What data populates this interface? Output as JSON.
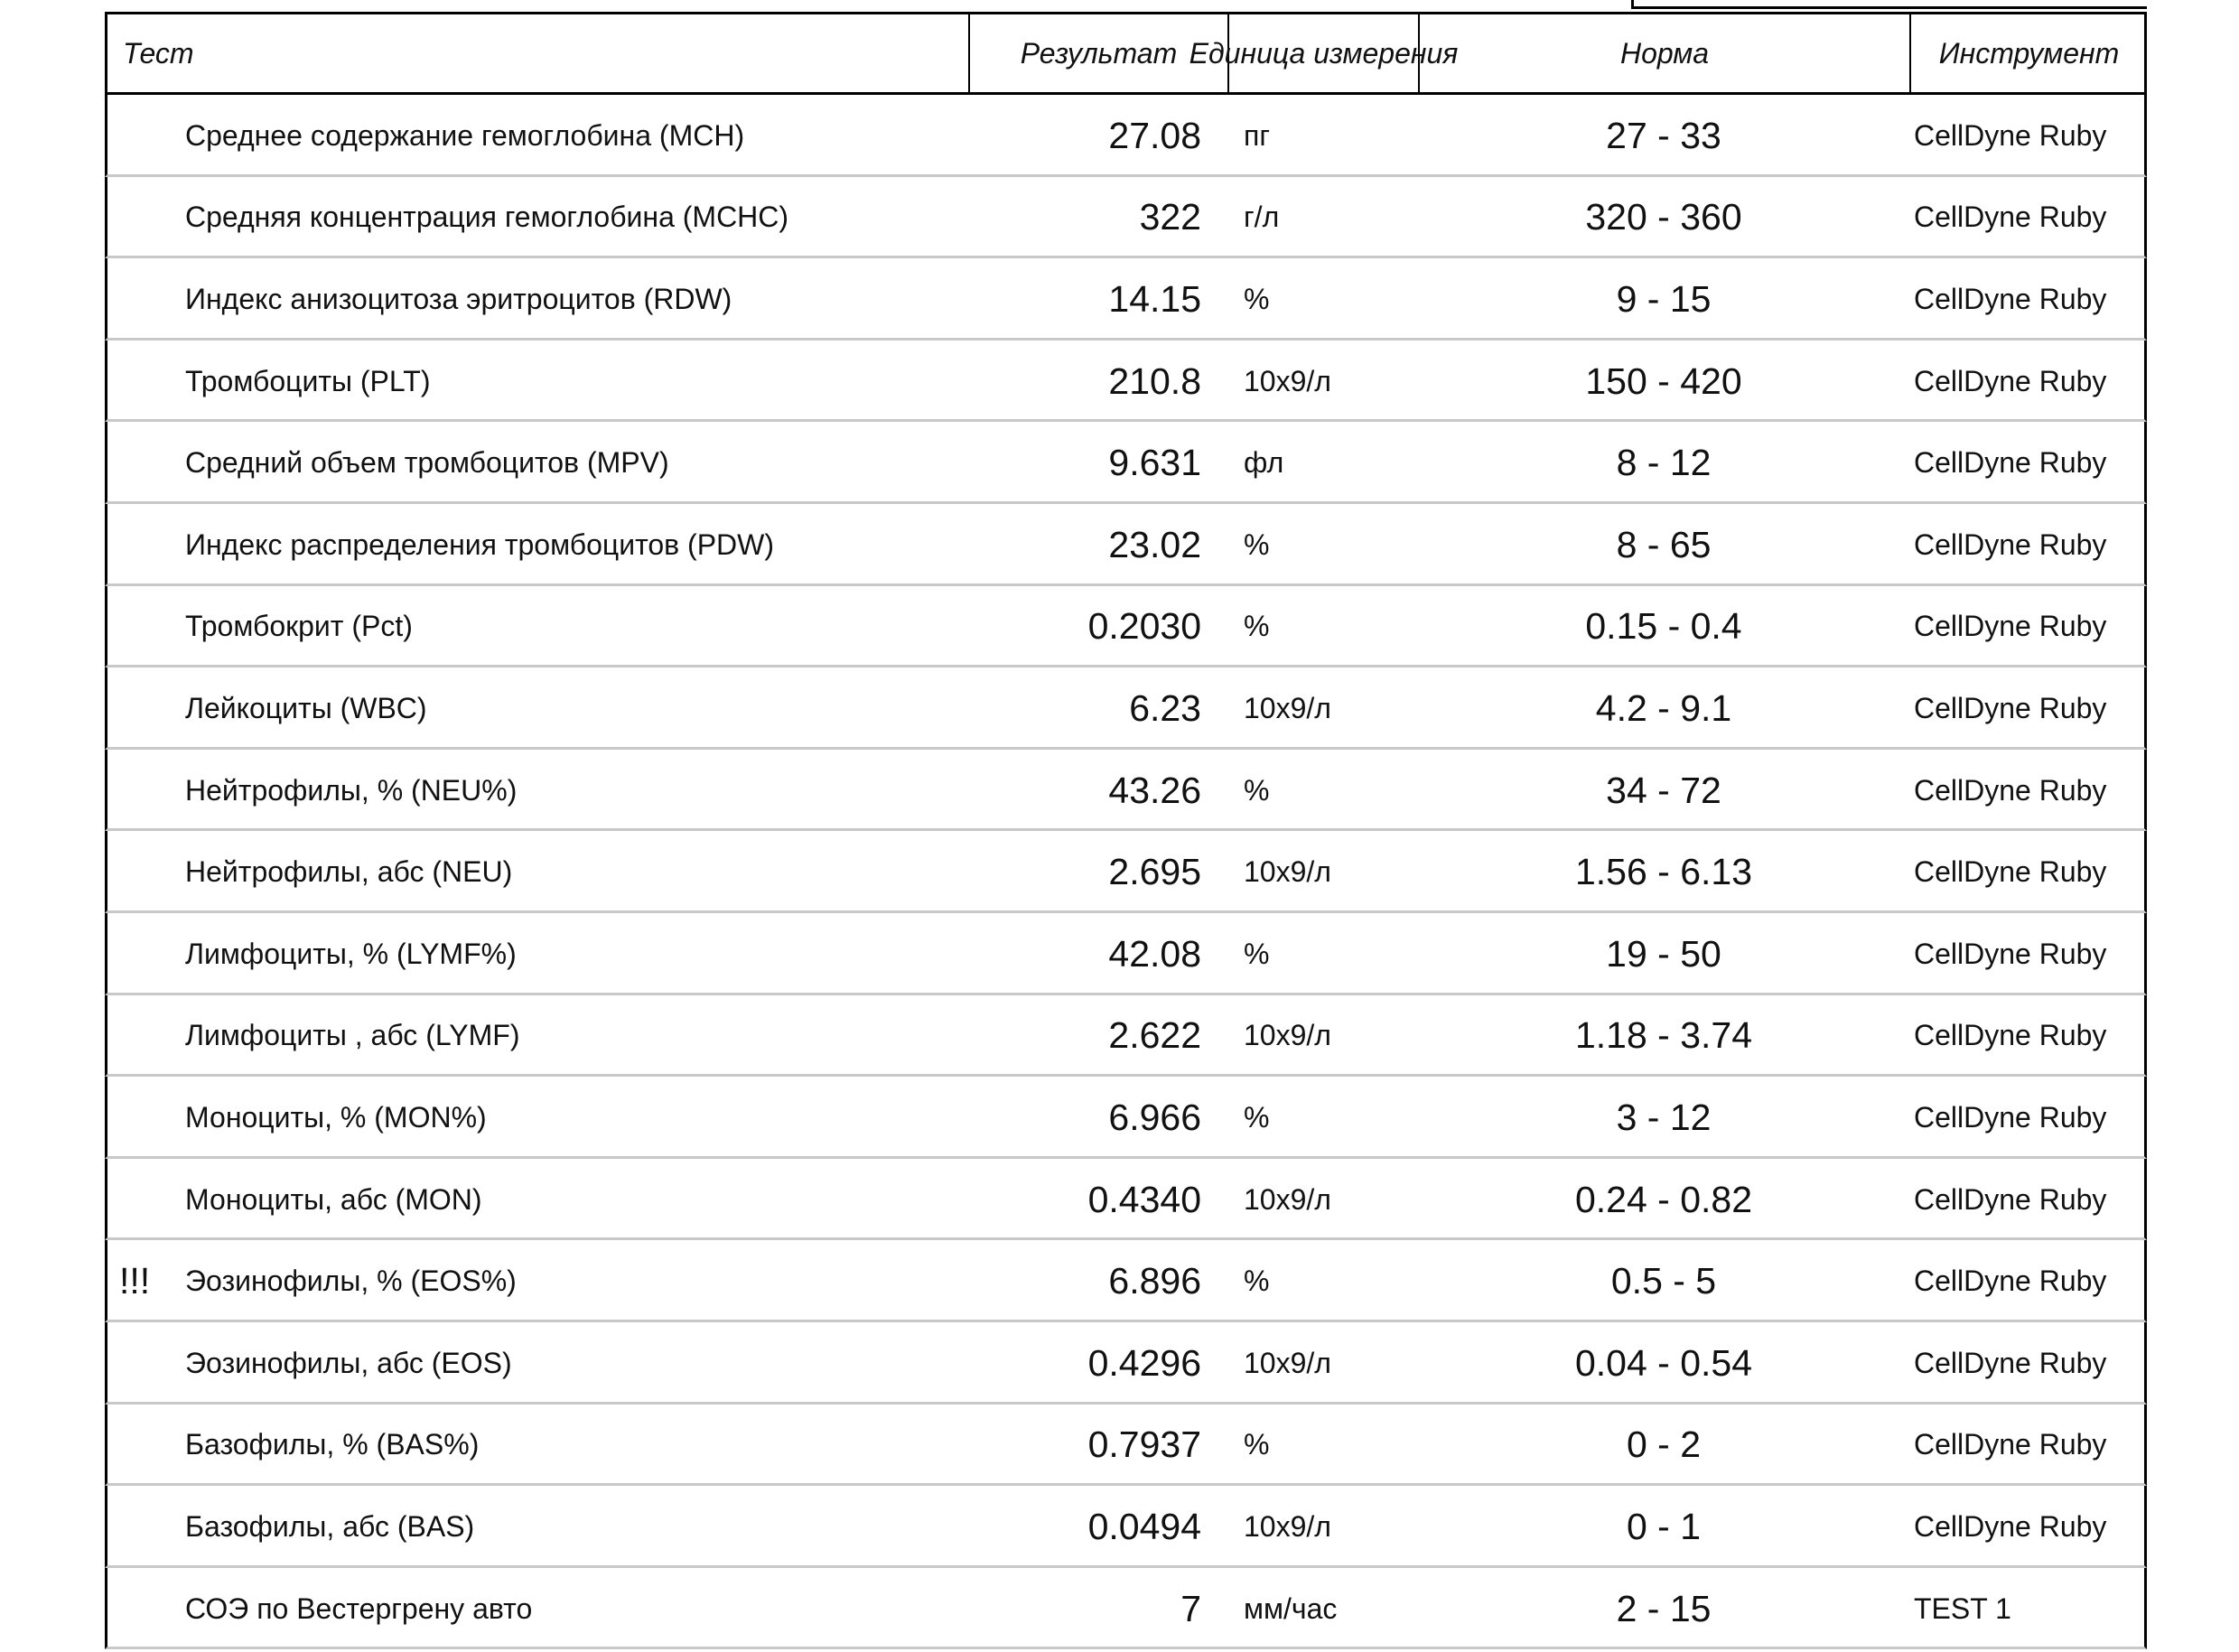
{
  "header": {
    "columns": [
      "Тест",
      "Результат",
      "Единица измерения",
      "Норма",
      "Инструмент"
    ]
  },
  "rows": [
    {
      "test": "Среднее содержание гемоглобина (MCH)",
      "result": "27.08",
      "unit": "пг",
      "norm": "27 - 33",
      "instrument": "CellDyne Ruby"
    },
    {
      "test": "Средняя концентрация гемоглобина (MCHC)",
      "result": "322",
      "unit": "г/л",
      "norm": "320 - 360",
      "instrument": "CellDyne Ruby"
    },
    {
      "test": "Индекс анизоцитоза эритроцитов (RDW)",
      "result": "14.15",
      "unit": "%",
      "norm": "9 - 15",
      "instrument": "CellDyne Ruby"
    },
    {
      "test": "Тромбоциты (PLT)",
      "result": "210.8",
      "unit": "10x9/л",
      "norm": "150 - 420",
      "instrument": "CellDyne Ruby"
    },
    {
      "test": "Средний объем тромбоцитов (MPV)",
      "result": "9.631",
      "unit": "фл",
      "norm": "8 - 12",
      "instrument": "CellDyne Ruby"
    },
    {
      "test": "Индекс распределения тромбоцитов (PDW)",
      "result": "23.02",
      "unit": "%",
      "norm": "8 - 65",
      "instrument": "CellDyne Ruby"
    },
    {
      "test": "Тромбокрит (Pct)",
      "result": "0.2030",
      "unit": "%",
      "norm": "0.15 - 0.4",
      "instrument": "CellDyne Ruby"
    },
    {
      "test": "Лейкоциты (WBC)",
      "result": "6.23",
      "unit": "10x9/л",
      "norm": "4.2 - 9.1",
      "instrument": "CellDyne Ruby"
    },
    {
      "test": "Нейтрофилы, % (NEU%)",
      "result": "43.26",
      "unit": "%",
      "norm": "34 - 72",
      "instrument": "CellDyne Ruby"
    },
    {
      "test": "Нейтрофилы, абс (NEU)",
      "result": "2.695",
      "unit": "10x9/л",
      "norm": "1.56 - 6.13",
      "instrument": "CellDyne Ruby"
    },
    {
      "test": "Лимфоциты, % (LYMF%)",
      "result": "42.08",
      "unit": "%",
      "norm": "19 - 50",
      "instrument": "CellDyne Ruby"
    },
    {
      "test": "Лимфоциты , абс (LYMF)",
      "result": "2.622",
      "unit": "10x9/л",
      "norm": "1.18 - 3.74",
      "instrument": "CellDyne Ruby"
    },
    {
      "test": "Моноциты, % (MON%)",
      "result": "6.966",
      "unit": "%",
      "norm": "3 - 12",
      "instrument": "CellDyne Ruby"
    },
    {
      "test": "Моноциты, абс (MON)",
      "result": "0.4340",
      "unit": "10x9/л",
      "norm": "0.24 - 0.82",
      "instrument": "CellDyne Ruby"
    },
    {
      "flag": "!!!",
      "test": "Эозинофилы, % (EOS%)",
      "result": "6.896",
      "unit": "%",
      "norm": "0.5 - 5",
      "instrument": "CellDyne Ruby"
    },
    {
      "test": "Эозинофилы, абс (EOS)",
      "result": "0.4296",
      "unit": "10x9/л",
      "norm": "0.04 - 0.54",
      "instrument": "CellDyne Ruby"
    },
    {
      "test": "Базофилы, % (BAS%)",
      "result": "0.7937",
      "unit": "%",
      "norm": "0 - 2",
      "instrument": "CellDyne Ruby"
    },
    {
      "test": "Базофилы, абс (BAS)",
      "result": "0.0494",
      "unit": "10x9/л",
      "norm": "0 - 1",
      "instrument": "CellDyne Ruby"
    },
    {
      "test": "СОЭ по Вестергрену авто",
      "result": "7",
      "unit": "мм/час",
      "norm": "2 - 15",
      "instrument": "TEST 1"
    }
  ]
}
